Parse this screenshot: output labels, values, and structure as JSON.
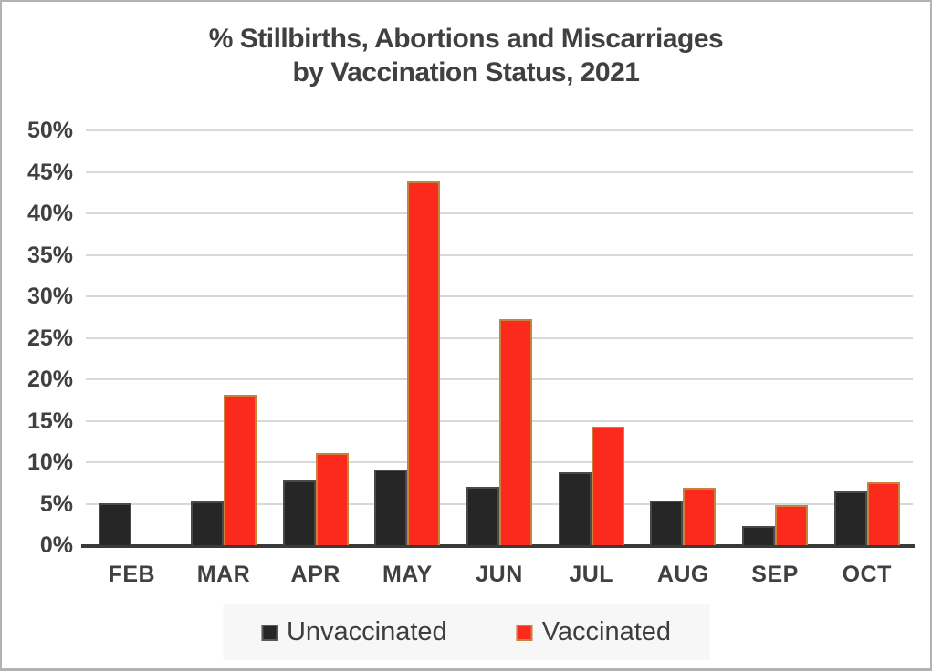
{
  "page": {
    "background": "#ffffff",
    "border_color": "#b2b2b2"
  },
  "chart_data": {
    "type": "bar",
    "title_line1": "% Stillbirths, Abortions and Miscarriages",
    "title_line2": "by Vaccination Status, 2021",
    "categories": [
      "FEB",
      "MAR",
      "APR",
      "MAY",
      "JUN",
      "JUL",
      "AUG",
      "SEP",
      "OCT"
    ],
    "series": [
      {
        "name": "Unvaccinated",
        "color": "#262626",
        "border_color": "#4a4a4a",
        "values": [
          5.1,
          5.3,
          7.8,
          9.1,
          7.0,
          8.8,
          5.4,
          2.3,
          6.5
        ]
      },
      {
        "name": "Vaccinated",
        "color": "#fc2a1c",
        "border_color": "#c8823c",
        "values": [
          0,
          18.1,
          11.1,
          43.8,
          27.3,
          14.3,
          6.9,
          4.8,
          7.6
        ]
      }
    ],
    "y_axis": {
      "min": 0,
      "max": 50,
      "step": 5,
      "unit": "%",
      "tick_labels": [
        "0%",
        "5%",
        "10%",
        "15%",
        "20%",
        "25%",
        "30%",
        "35%",
        "40%",
        "45%",
        "50%"
      ]
    },
    "grid": true,
    "gridline_color": "#d9d9d9",
    "axis_line_color": "#3a3a3a",
    "legend_position": "bottom",
    "legend_background": "#f7f7f7",
    "text_color": "#404040"
  }
}
